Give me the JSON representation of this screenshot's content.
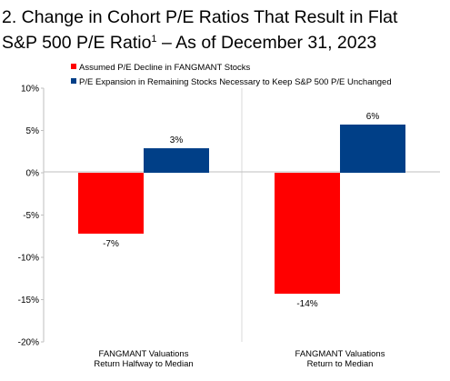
{
  "chart_data": {
    "type": "bar",
    "title_line1": "2. Change in Cohort P/E Ratios That Result in Flat",
    "title_line2_main": "S&P 500 P/E Ratio",
    "title_line2_sup": "1",
    "title_line2_rest": " – As of December 31, 2023",
    "categories": [
      [
        "FANGMANT Valuations",
        "Return Halfway to Median"
      ],
      [
        "FANGMANT Valuations",
        "Return to Median"
      ]
    ],
    "series": [
      {
        "name": "Assumed P/E Decline in FANGMANT Stocks",
        "color": "#ff0000",
        "values": [
          -7.2,
          -14.3
        ],
        "labels": [
          "-7%",
          "-14%"
        ]
      },
      {
        "name": "P/E Expansion in Remaining Stocks Necessary to Keep S&P 500 P/E Unchanged",
        "color": "#003f87",
        "values": [
          2.9,
          5.7
        ],
        "labels": [
          "3%",
          "6%"
        ]
      }
    ],
    "ylim": [
      -20,
      10
    ],
    "yticks": [
      10,
      5,
      0,
      -5,
      -10,
      -15,
      -20
    ],
    "ytick_labels": [
      "10%",
      "5%",
      "0%",
      "-5%",
      "-10%",
      "-15%",
      "-20%"
    ],
    "grid": false,
    "legend_position": "top-left"
  }
}
